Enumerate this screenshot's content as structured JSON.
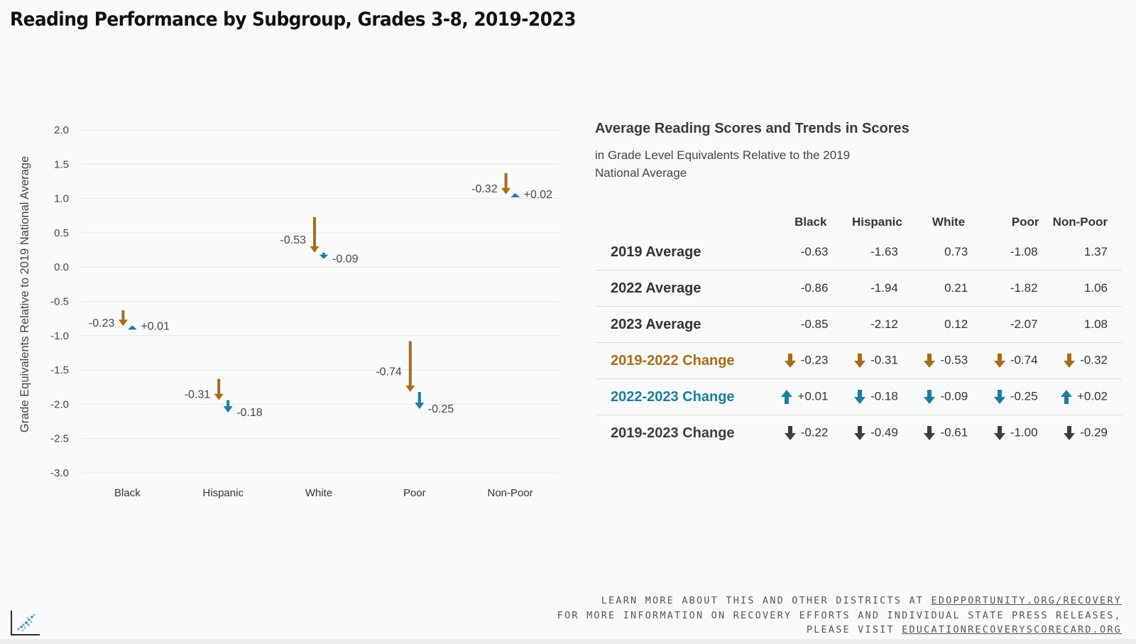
{
  "page": {
    "title": "Reading Performance by Subgroup, Grades 3-8, 2019-2023"
  },
  "colors": {
    "decline_2019_2022": "#a96b14",
    "change_2022_2023": "#1a7e9c",
    "change_2019_2023": "#3d3d3d",
    "gridline": "#e4e4e4"
  },
  "chart_data": {
    "type": "arrow-change",
    "ylabel": "Grade Equivalents Relative to 2019 National Average",
    "ylim": [
      -3.0,
      2.0
    ],
    "yticks": [
      "2.0",
      "1.5",
      "1.0",
      "0.5",
      "0.0",
      "-0.5",
      "-1.0",
      "-1.5",
      "-2.0",
      "-2.5",
      "-3.0"
    ],
    "categories": [
      "Black",
      "Hispanic",
      "White",
      "Poor",
      "Non-Poor"
    ],
    "series": [
      {
        "name": "2019-2022 Change",
        "from": [
          -0.63,
          -1.63,
          0.73,
          -1.08,
          1.37
        ],
        "to": [
          -0.86,
          -1.94,
          0.21,
          -1.82,
          1.06
        ],
        "labels": [
          "-0.23",
          "-0.31",
          "-0.53",
          "-0.74",
          "-0.32"
        ]
      },
      {
        "name": "2022-2023 Change",
        "from": [
          -0.86,
          -1.94,
          0.21,
          -1.82,
          1.06
        ],
        "to": [
          -0.85,
          -2.12,
          0.12,
          -2.07,
          1.08
        ],
        "labels": [
          "+0.01",
          "-0.18",
          "-0.09",
          "-0.25",
          "+0.02"
        ]
      }
    ]
  },
  "table": {
    "title": "Average Reading Scores and Trends in Scores",
    "subtitle": "in Grade Level Equivalents Relative to the 2019 National Average",
    "columns": [
      "Black",
      "Hispanic",
      "White",
      "Poor",
      "Non-Poor"
    ],
    "rows": [
      {
        "label": "2019 Average",
        "values": [
          "-0.63",
          "-1.63",
          "0.73",
          "-1.08",
          "1.37"
        ]
      },
      {
        "label": "2022 Average",
        "values": [
          "-0.86",
          "-1.94",
          "0.21",
          "-1.82",
          "1.06"
        ]
      },
      {
        "label": "2023 Average",
        "values": [
          "-0.85",
          "-2.12",
          "0.12",
          "-2.07",
          "1.08"
        ]
      },
      {
        "label": "2019-2022 Change",
        "values": [
          "-0.23",
          "-0.31",
          "-0.53",
          "-0.74",
          "-0.32"
        ],
        "arrows": [
          "down",
          "down",
          "down",
          "down",
          "down"
        ]
      },
      {
        "label": "2022-2023 Change",
        "values": [
          "+0.01",
          "-0.18",
          "-0.09",
          "-0.25",
          "+0.02"
        ],
        "arrows": [
          "up",
          "down",
          "down",
          "down",
          "up"
        ]
      },
      {
        "label": "2019-2023 Change",
        "values": [
          "-0.22",
          "-0.49",
          "-0.61",
          "-1.00",
          "-0.29"
        ],
        "arrows": [
          "down",
          "down",
          "down",
          "down",
          "down"
        ]
      }
    ]
  },
  "footer": {
    "line1_prefix": "Learn more about this and other districts at",
    "line1_link": "edopportunity.org/recovery",
    "line2": "For more information on recovery efforts and individual state press releases,",
    "line3_prefix": "please visit",
    "line3_link": "educationrecoveryscorecard.org"
  },
  "logo": {
    "icon": "scatter-logo-icon"
  }
}
